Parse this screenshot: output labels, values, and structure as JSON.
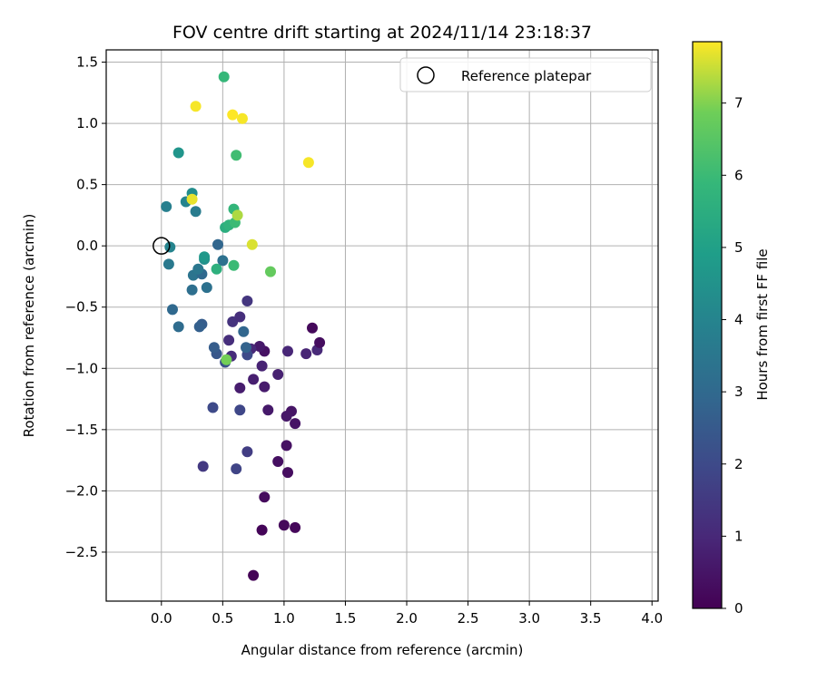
{
  "chart_data": {
    "type": "scatter",
    "title": "FOV centre drift starting at 2024/11/14 23:18:37",
    "xlabel": "Angular distance from reference (arcmin)",
    "ylabel": "Rotation from reference (arcmin)",
    "xlim": [
      -0.45,
      4.05
    ],
    "ylim": [
      -2.9,
      1.6
    ],
    "xticks": [
      0.0,
      0.5,
      1.0,
      1.5,
      2.0,
      2.5,
      3.0,
      3.5,
      4.0
    ],
    "xtick_labels": [
      "0.0",
      "0.5",
      "1.0",
      "1.5",
      "2.0",
      "2.5",
      "3.0",
      "3.5",
      "4.0"
    ],
    "yticks": [
      1.5,
      1.0,
      0.5,
      0.0,
      -0.5,
      -1.0,
      -1.5,
      -2.0,
      -2.5
    ],
    "ytick_labels": [
      "1.5",
      "1.0",
      "0.5",
      "0.0",
      "−0.5",
      "−1.0",
      "−1.5",
      "−2.0",
      "−2.5"
    ],
    "grid": true,
    "legend": {
      "position": "top-right",
      "entries": [
        "Reference platepar"
      ]
    },
    "reference_point": {
      "x": 0.0,
      "y": 0.0
    },
    "colorbar": {
      "label": "Hours from first FF file",
      "range": [
        0,
        7.85
      ],
      "ticks": [
        0,
        1,
        2,
        3,
        4,
        5,
        6,
        7
      ],
      "tick_labels": [
        "0",
        "1",
        "2",
        "3",
        "4",
        "5",
        "6",
        "7"
      ],
      "colormap": "viridis"
    },
    "series": [
      {
        "points": [
          [
            0.75,
            -2.69,
            0.05
          ],
          [
            0.82,
            -2.32,
            0.1
          ],
          [
            1.09,
            -2.3,
            0.15
          ],
          [
            1.0,
            -2.28,
            0.2
          ],
          [
            0.84,
            -2.05,
            0.25
          ],
          [
            1.03,
            -1.85,
            0.3
          ],
          [
            0.95,
            -1.76,
            0.35
          ],
          [
            1.02,
            -1.63,
            0.4
          ],
          [
            1.09,
            -1.45,
            0.45
          ],
          [
            1.06,
            -1.35,
            0.5
          ],
          [
            1.02,
            -1.39,
            0.55
          ],
          [
            0.87,
            -1.34,
            0.6
          ],
          [
            0.84,
            -1.15,
            0.65
          ],
          [
            0.64,
            -1.16,
            0.7
          ],
          [
            0.75,
            -1.09,
            0.75
          ],
          [
            0.95,
            -1.05,
            0.8
          ],
          [
            0.82,
            -0.98,
            0.85
          ],
          [
            1.18,
            -0.88,
            0.9
          ],
          [
            1.03,
            -0.86,
            0.95
          ],
          [
            1.27,
            -0.85,
            1.0
          ],
          [
            1.29,
            -0.79,
            0.3
          ],
          [
            1.23,
            -0.67,
            0.2
          ],
          [
            0.84,
            -0.86,
            0.4
          ],
          [
            0.8,
            -0.82,
            0.6
          ],
          [
            0.73,
            -0.84,
            1.0
          ],
          [
            0.57,
            -0.9,
            1.1
          ],
          [
            0.55,
            -0.77,
            1.15
          ],
          [
            0.58,
            -0.62,
            1.3
          ],
          [
            0.64,
            -0.58,
            1.2
          ],
          [
            0.7,
            -0.45,
            1.4
          ],
          [
            0.7,
            -1.68,
            1.6
          ],
          [
            0.61,
            -1.82,
            1.8
          ],
          [
            0.34,
            -1.8,
            1.5
          ],
          [
            0.64,
            -1.34,
            1.9
          ],
          [
            0.42,
            -1.32,
            2.0
          ],
          [
            0.52,
            -0.95,
            2.2
          ],
          [
            0.45,
            -0.88,
            2.4
          ],
          [
            0.43,
            -0.83,
            2.6
          ],
          [
            0.7,
            -0.89,
            2.0
          ],
          [
            0.69,
            -0.83,
            2.8
          ],
          [
            0.67,
            -0.7,
            2.9
          ],
          [
            0.33,
            -0.64,
            2.6
          ],
          [
            0.31,
            -0.66,
            2.7
          ],
          [
            0.14,
            -0.66,
            3.1
          ],
          [
            0.09,
            -0.52,
            3.0
          ],
          [
            0.25,
            -0.36,
            3.2
          ],
          [
            0.37,
            -0.34,
            3.3
          ],
          [
            0.26,
            -0.24,
            3.4
          ],
          [
            0.33,
            -0.23,
            3.0
          ],
          [
            0.3,
            -0.19,
            3.5
          ],
          [
            0.46,
            0.01,
            2.9
          ],
          [
            0.5,
            -0.12,
            3.3
          ],
          [
            0.06,
            -0.15,
            3.6
          ],
          [
            0.07,
            -0.01,
            4.0
          ],
          [
            0.35,
            -0.11,
            4.4
          ],
          [
            0.35,
            -0.09,
            4.7
          ],
          [
            0.28,
            0.28,
            3.7
          ],
          [
            0.04,
            0.32,
            3.8
          ],
          [
            0.2,
            0.36,
            4.0
          ],
          [
            0.25,
            0.43,
            4.3
          ],
          [
            0.14,
            0.76,
            4.6
          ],
          [
            0.52,
            0.15,
            5.5
          ],
          [
            0.55,
            0.17,
            5.7
          ],
          [
            0.59,
            0.3,
            5.8
          ],
          [
            0.6,
            0.19,
            6.0
          ],
          [
            0.45,
            -0.19,
            5.6
          ],
          [
            0.59,
            -0.16,
            6.0
          ],
          [
            0.61,
            0.74,
            6.1
          ],
          [
            0.51,
            1.38,
            5.9
          ],
          [
            0.89,
            -0.21,
            6.7
          ],
          [
            0.53,
            -0.93,
            6.9
          ],
          [
            0.62,
            0.25,
            7.3
          ],
          [
            0.74,
            0.01,
            7.6
          ],
          [
            0.25,
            0.38,
            7.7
          ],
          [
            0.28,
            1.14,
            7.8
          ],
          [
            0.58,
            1.07,
            7.85
          ],
          [
            0.66,
            1.04,
            7.8
          ],
          [
            1.2,
            0.68,
            7.8
          ]
        ]
      }
    ]
  }
}
